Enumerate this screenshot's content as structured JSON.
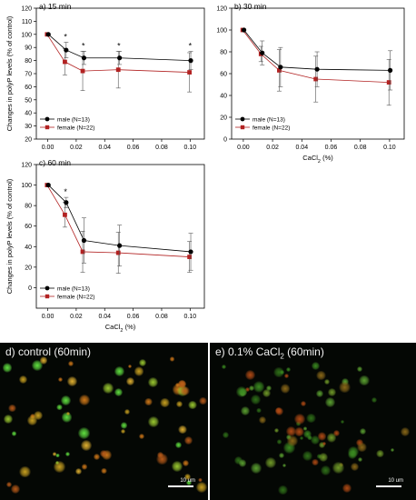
{
  "chart_data": [
    {
      "type": "line",
      "title": "a) 15 min",
      "ylabel": "Changes in polyP levels (% of control)",
      "xlabel": "",
      "ylim": [
        20,
        120
      ],
      "yticks": [
        20,
        30,
        40,
        50,
        60,
        70,
        80,
        90,
        100,
        110,
        120
      ],
      "xticks": [
        "0.00",
        "0.02",
        "0.04",
        "0.06",
        "0.08",
        "0.10"
      ],
      "x": [
        0.0,
        0.0125,
        0.025,
        0.05,
        0.1
      ],
      "series": [
        {
          "name": "male (N=13)",
          "color": "#000000",
          "values": [
            100,
            88,
            82,
            82,
            80
          ],
          "error": [
            0,
            6,
            5,
            5,
            7
          ]
        },
        {
          "name": "female (N=22)",
          "color": "#b22222",
          "values": [
            100,
            79,
            72,
            73,
            71
          ],
          "error": [
            0,
            10,
            15,
            14,
            15
          ]
        }
      ],
      "significance": [
        "*",
        "*",
        "*",
        "*"
      ],
      "legend": "bottom-left"
    },
    {
      "type": "line",
      "title": "b) 30 min",
      "ylabel": "",
      "xlabel": "CaCl2 (%)",
      "ylim": [
        0,
        120
      ],
      "yticks": [
        0,
        20,
        40,
        60,
        80,
        100,
        120
      ],
      "xticks": [
        "0.00",
        "0.02",
        "0.04",
        "0.06",
        "0.08",
        "0.10"
      ],
      "x": [
        0.0,
        0.0125,
        0.025,
        0.05,
        0.1
      ],
      "series": [
        {
          "name": "male (N=13)",
          "color": "#000000",
          "values": [
            100,
            79,
            66,
            64,
            63
          ],
          "error": [
            0,
            11,
            18,
            16,
            18
          ]
        },
        {
          "name": "female (N=22)",
          "color": "#b22222",
          "values": [
            100,
            78,
            63,
            55,
            52
          ],
          "error": [
            0,
            7,
            19,
            21,
            21
          ]
        }
      ],
      "legend": "bottom-left"
    },
    {
      "type": "line",
      "title": "c) 60 min",
      "ylabel": "Changes in polyP levels (% of control)",
      "xlabel": "CaCl2 (%)",
      "ylim": [
        -20,
        120
      ],
      "yticks": [
        0,
        20,
        40,
        60,
        80,
        100,
        120
      ],
      "xticks": [
        "0.00",
        "0.02",
        "0.04",
        "0.06",
        "0.08",
        "0.10"
      ],
      "x": [
        0.0,
        0.0125,
        0.025,
        0.05,
        0.1
      ],
      "series": [
        {
          "name": "male (N=13)",
          "color": "#000000",
          "values": [
            100,
            83,
            46,
            41,
            35
          ],
          "error": [
            0,
            5,
            22,
            20,
            18
          ]
        },
        {
          "name": "female (N=22)",
          "color": "#b22222",
          "values": [
            100,
            71,
            35,
            34,
            30
          ],
          "error": [
            0,
            12,
            20,
            20,
            15
          ]
        }
      ],
      "significance": [
        "*"
      ],
      "legend": "bottom-left"
    }
  ],
  "micrographs": {
    "control": {
      "label_main": "d) control (60min)",
      "scale": "10 um"
    },
    "cacl2": {
      "label_prefix": "e) 0.1% CaCl",
      "label_sub": "2",
      "label_suffix": " (60min)",
      "scale": "10 um"
    }
  },
  "colors": {
    "male": "#000000",
    "female": "#b22222",
    "micro_bg": "#040704"
  }
}
